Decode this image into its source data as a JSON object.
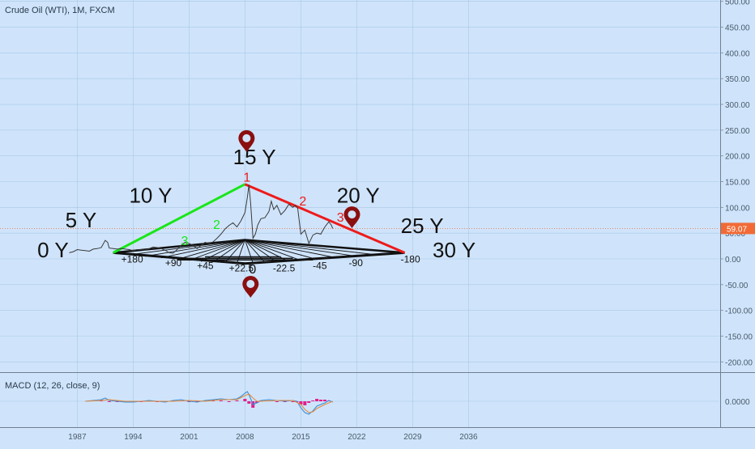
{
  "header": {
    "symbol_title": "Crude Oil (WTI), 1M, FXCM",
    "macd_label": "MACD (12, 26, close, 9)",
    "last_price_label": "59.07"
  },
  "colors": {
    "background": "#cfe4fb",
    "grid": "#a9c7e6",
    "price_line": "#3a3a3a",
    "green_line": "#19e619",
    "red_line": "#ee1a1a",
    "marker": "#8b0f0f",
    "price_badge": "#f26b36",
    "macd_line": "#3a8fd9",
    "signal_line": "#e88a3a",
    "histogram": "#e0208a"
  },
  "chart_data": [
    {
      "type": "line",
      "yticks": [
        500,
        450,
        400,
        350,
        300,
        250,
        200,
        150,
        100,
        50,
        0,
        -50,
        -100,
        -150,
        -200
      ],
      "ytick_labels": [
        "500.00",
        "450.00",
        "400.00",
        "350.00",
        "300.00",
        "250.00",
        "200.00",
        "150.00",
        "100.00",
        "50.00",
        "0.00",
        "-50.00",
        "-100.00",
        "-150.00",
        "-200.00"
      ],
      "ylim": [
        -220,
        505
      ],
      "xlim": [
        1980.0,
        2041.0
      ],
      "xticks": [
        1987,
        1994,
        2001,
        2008,
        2015,
        2022,
        2029,
        2036
      ],
      "xtick_labels": [
        "1987",
        "1994",
        "2001",
        "2008",
        "2015",
        "2022",
        "2029",
        "2036"
      ],
      "last_price": 59.07,
      "series": [
        {
          "x": [
            1986.0,
            1986.5,
            1987.0,
            1987.5,
            1988.0,
            1988.5,
            1989.0,
            1989.5,
            1990.0,
            1990.5,
            1990.8,
            1991.0,
            1991.5,
            1992.0,
            1992.5,
            1993.0,
            1993.5,
            1994.0,
            1994.5,
            1995.0,
            1995.5,
            1996.0,
            1996.5,
            1997.0,
            1997.5,
            1998.0,
            1998.5,
            1999.0,
            1999.5,
            2000.0,
            2000.5,
            2001.0,
            2001.5,
            2002.0,
            2002.5,
            2003.0,
            2003.5,
            2004.0,
            2004.5,
            2005.0,
            2005.5,
            2006.0,
            2006.5,
            2007.0,
            2007.5,
            2008.0,
            2008.3,
            2008.5,
            2008.7,
            2009.0,
            2009.3,
            2009.6,
            2010.0,
            2010.5,
            2011.0,
            2011.3,
            2011.6,
            2012.0,
            2012.5,
            2013.0,
            2013.5,
            2014.0,
            2014.3,
            2014.6,
            2015.0,
            2015.5,
            2016.0,
            2016.5,
            2017.0,
            2017.5,
            2018.0,
            2018.5,
            2018.8,
            2019.0
          ],
          "y": [
            12,
            14,
            18,
            17,
            16,
            15,
            19,
            20,
            22,
            36,
            32,
            21,
            20,
            19,
            20,
            19,
            18,
            16,
            18,
            18,
            17,
            20,
            23,
            22,
            20,
            17,
            12,
            11,
            18,
            26,
            32,
            30,
            26,
            20,
            26,
            32,
            30,
            33,
            40,
            48,
            58,
            65,
            70,
            62,
            74,
            90,
            120,
            144,
            110,
            40,
            48,
            66,
            78,
            80,
            92,
            112,
            96,
            104,
            86,
            94,
            106,
            100,
            104,
            98,
            48,
            56,
            30,
            46,
            50,
            48,
            62,
            72,
            66,
            59.07
          ],
          "name": ""
        }
      ],
      "overlays": {
        "green_line": {
          "x": [
            1991.5,
            2008.0
          ],
          "y": [
            12,
            145
          ]
        },
        "red_line": {
          "x": [
            2008.0,
            2028.0
          ],
          "y": [
            145,
            12
          ]
        },
        "fan_apex": {
          "x": 2008.0,
          "y": 37
        },
        "fan_base_left": {
          "x": 1991.5,
          "y": 12
        },
        "fan_base_right": {
          "x": 2028.0,
          "y": 12
        },
        "fan_rays_end_x": [
          1991.5,
          1993.5,
          1995.5,
          1997.5,
          1999.5,
          2001.0,
          2002.5,
          2004.0,
          2005.5,
          2007.0,
          2009.0,
          2010.5,
          2012.0,
          2013.5,
          2015.0,
          2017.0,
          2019.5,
          2022.0,
          2024.5,
          2028.0
        ],
        "fan_rays_end_y": [
          12,
          8,
          5,
          2,
          -1,
          -3,
          -5,
          -6,
          -7,
          -8,
          -8,
          -7,
          -6,
          -5,
          -3,
          -1,
          2,
          5,
          8,
          12
        ]
      },
      "annotations": [
        {
          "text": "0 Y",
          "x": 1982.0,
          "y": 3,
          "color": "#111111",
          "size": "big"
        },
        {
          "text": "5 Y",
          "x": 1985.5,
          "y": 61,
          "color": "#111111",
          "size": "big"
        },
        {
          "text": "10 Y",
          "x": 1993.5,
          "y": 109,
          "color": "#111111",
          "size": "big"
        },
        {
          "text": "15 Y",
          "x": 2006.5,
          "y": 184,
          "color": "#111111",
          "size": "big"
        },
        {
          "text": "20 Y",
          "x": 2019.5,
          "y": 109,
          "color": "#111111",
          "size": "big"
        },
        {
          "text": "25 Y",
          "x": 2027.5,
          "y": 50,
          "color": "#111111",
          "size": "big"
        },
        {
          "text": "30 Y",
          "x": 2031.5,
          "y": 3,
          "color": "#111111",
          "size": "big"
        },
        {
          "text": "+180",
          "x": 1992.5,
          "y": -7,
          "color": "#111111",
          "size": "small"
        },
        {
          "text": "+90",
          "x": 1998.0,
          "y": -14,
          "color": "#111111",
          "size": "small"
        },
        {
          "text": "+45",
          "x": 2002.0,
          "y": -20,
          "color": "#111111",
          "size": "small"
        },
        {
          "text": "+22.5",
          "x": 2006.0,
          "y": -24,
          "color": "#111111",
          "size": "small"
        },
        {
          "text": "0",
          "x": 2008.5,
          "y": -28,
          "color": "#111111",
          "size": "medium"
        },
        {
          "text": "-22.5",
          "x": 2011.5,
          "y": -24,
          "color": "#111111",
          "size": "small"
        },
        {
          "text": "-45",
          "x": 2016.5,
          "y": -20,
          "color": "#111111",
          "size": "small"
        },
        {
          "text": "-90",
          "x": 2021.0,
          "y": -14,
          "color": "#111111",
          "size": "small"
        },
        {
          "text": "-180",
          "x": 2027.5,
          "y": -7,
          "color": "#111111",
          "size": "small"
        },
        {
          "text": "1",
          "x": 2007.8,
          "y": 150,
          "color": "#ee1a1a",
          "size": "medium"
        },
        {
          "text": "2",
          "x": 2014.8,
          "y": 104,
          "color": "#ee1a1a",
          "size": "medium"
        },
        {
          "text": "3",
          "x": 2019.5,
          "y": 72,
          "color": "#ee1a1a",
          "size": "medium"
        },
        {
          "text": "2",
          "x": 2004.0,
          "y": 58,
          "color": "#19e619",
          "size": "medium"
        },
        {
          "text": "3",
          "x": 2000.0,
          "y": 27,
          "color": "#19e619",
          "size": "medium"
        }
      ],
      "markers": [
        {
          "x": 2008.2,
          "y": 228
        },
        {
          "x": 2021.4,
          "y": 80
        },
        {
          "x": 2008.7,
          "y": -55
        }
      ]
    },
    {
      "type": "line",
      "title": "MACD (12, 26, close, 9)",
      "yticks": [
        0
      ],
      "ytick_labels": [
        "0.0000"
      ],
      "ylim": [
        -30,
        30
      ],
      "xlim": [
        1980.0,
        2041.0
      ],
      "series": [
        {
          "name": "MACD",
          "x": [
            1988.0,
            1989.0,
            1990.0,
            1990.5,
            1991.0,
            1992.0,
            1993.0,
            1994.0,
            1995.0,
            1996.0,
            1997.0,
            1998.0,
            1999.0,
            2000.0,
            2001.0,
            2002.0,
            2003.0,
            2004.0,
            2005.0,
            2006.0,
            2007.0,
            2007.5,
            2008.0,
            2008.3,
            2008.6,
            2009.0,
            2009.5,
            2010.0,
            2011.0,
            2012.0,
            2013.0,
            2014.0,
            2014.5,
            2015.0,
            2015.5,
            2016.0,
            2016.5,
            2017.0,
            2018.0,
            2018.5,
            2019.0
          ],
          "y": [
            0,
            1,
            2,
            4,
            1,
            0,
            -1,
            -1,
            0,
            1,
            0,
            -1,
            1,
            2,
            0,
            -1,
            1,
            2,
            3,
            2,
            3,
            6,
            10,
            12,
            6,
            -4,
            -2,
            1,
            2,
            1,
            0,
            1,
            0,
            -8,
            -14,
            -16,
            -12,
            -6,
            -2,
            1,
            -1
          ]
        },
        {
          "name": "Signal",
          "x": [
            1988.0,
            1990.0,
            1991.0,
            1993.0,
            1995.0,
            1997.0,
            1999.0,
            2001.0,
            2003.0,
            2005.0,
            2007.0,
            2008.0,
            2008.5,
            2009.0,
            2009.5,
            2010.0,
            2012.0,
            2014.0,
            2015.0,
            2015.5,
            2016.0,
            2016.5,
            2017.0,
            2018.0,
            2019.0
          ],
          "y": [
            0,
            1,
            2,
            0,
            0,
            0,
            0,
            1,
            0,
            2,
            2,
            7,
            9,
            4,
            0,
            0,
            1,
            1,
            -4,
            -10,
            -14,
            -13,
            -9,
            -4,
            0
          ]
        }
      ],
      "histogram": {
        "x": [
          1990.0,
          1991.0,
          1992.0,
          1993.0,
          1994.0,
          1995.0,
          1996.0,
          1997.0,
          1998.0,
          1999.0,
          2000.0,
          2001.0,
          2002.0,
          2003.0,
          2004.0,
          2005.0,
          2006.0,
          2007.0,
          2008.0,
          2008.5,
          2009.0,
          2009.5,
          2010.0,
          2011.0,
          2012.0,
          2013.0,
          2014.0,
          2014.5,
          2015.0,
          2015.5,
          2016.0,
          2016.5,
          2017.0,
          2017.5,
          2018.0,
          2018.5
        ],
        "y": [
          1,
          -1,
          -1,
          -1,
          -1,
          -1,
          1,
          -1,
          -1,
          1,
          1,
          -1,
          -1,
          1,
          1,
          1,
          -1,
          1,
          3,
          -3,
          -8,
          -2,
          1,
          1,
          0,
          -1,
          0,
          -1,
          -4,
          -5,
          -2,
          1,
          3,
          2,
          2,
          1
        ]
      }
    }
  ]
}
